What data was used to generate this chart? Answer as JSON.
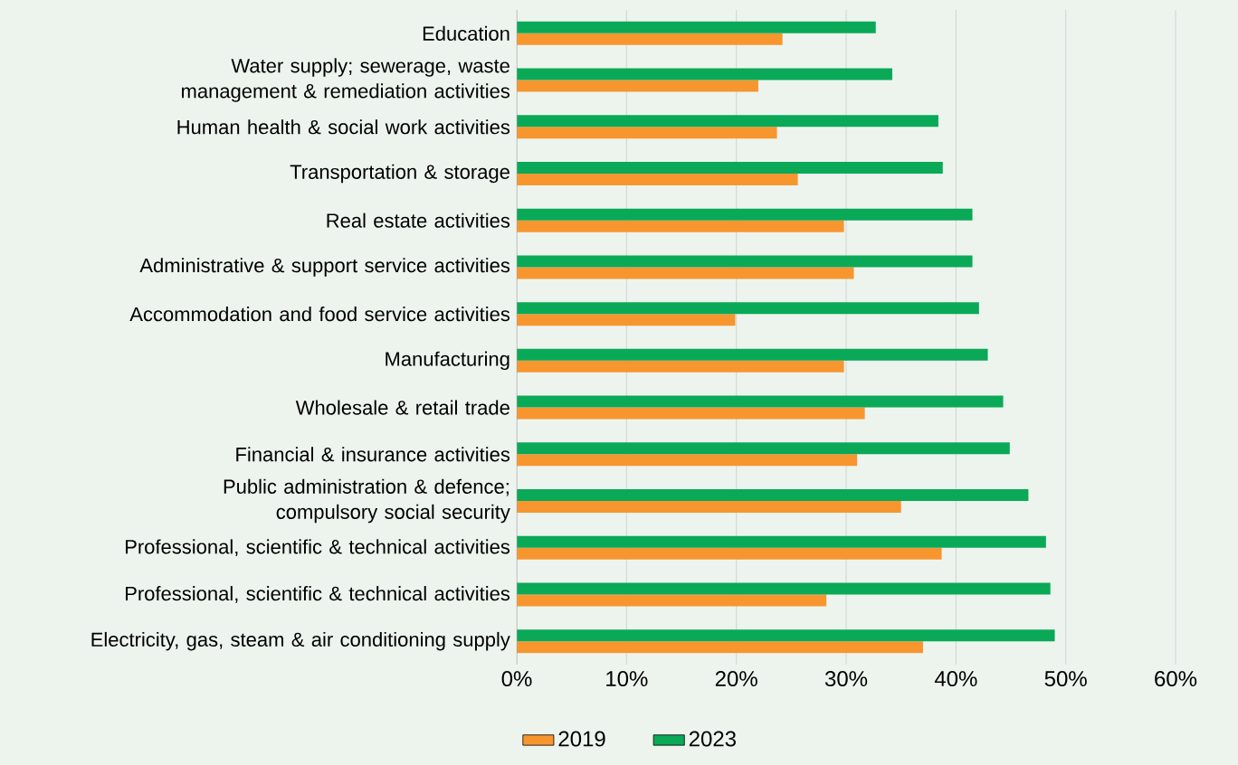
{
  "chart_data": {
    "type": "bar",
    "orientation": "horizontal",
    "categories": [
      "Education",
      "Water supply; sewerage, waste management & remediation activities",
      "Human health & social work activities",
      "Transportation & storage",
      "Real estate activities",
      "Administrative & support service activities",
      "Accommodation and food service activities",
      "Manufacturing",
      "Wholesale & retail trade",
      "Financial & insurance activities",
      "Public administration & defence; compulsory social security",
      "Professional, scientific & technical activities",
      "Professional, scientific & technical activities",
      "Electricity, gas, steam & air conditioning supply"
    ],
    "series": [
      {
        "name": "2019",
        "color": "#f7962f",
        "values": [
          24.2,
          22.0,
          23.7,
          25.6,
          29.8,
          30.7,
          19.9,
          29.8,
          31.7,
          31.0,
          35.0,
          38.7,
          28.2,
          37.0
        ]
      },
      {
        "name": "2023",
        "color": "#0aa957",
        "values": [
          32.7,
          34.2,
          38.4,
          38.8,
          41.5,
          41.5,
          42.1,
          42.9,
          44.3,
          44.9,
          46.6,
          48.2,
          48.6,
          49.0
        ]
      }
    ],
    "xlim": [
      0,
      60
    ],
    "xticks": [
      {
        "value": 0,
        "label": "0%"
      },
      {
        "value": 10,
        "label": "10%"
      },
      {
        "value": 20,
        "label": "20%"
      },
      {
        "value": 30,
        "label": "30%"
      },
      {
        "value": 40,
        "label": "40%"
      },
      {
        "value": 50,
        "label": "50%"
      },
      {
        "value": 60,
        "label": "60%"
      }
    ],
    "grid": "x",
    "legend": "bottom"
  }
}
